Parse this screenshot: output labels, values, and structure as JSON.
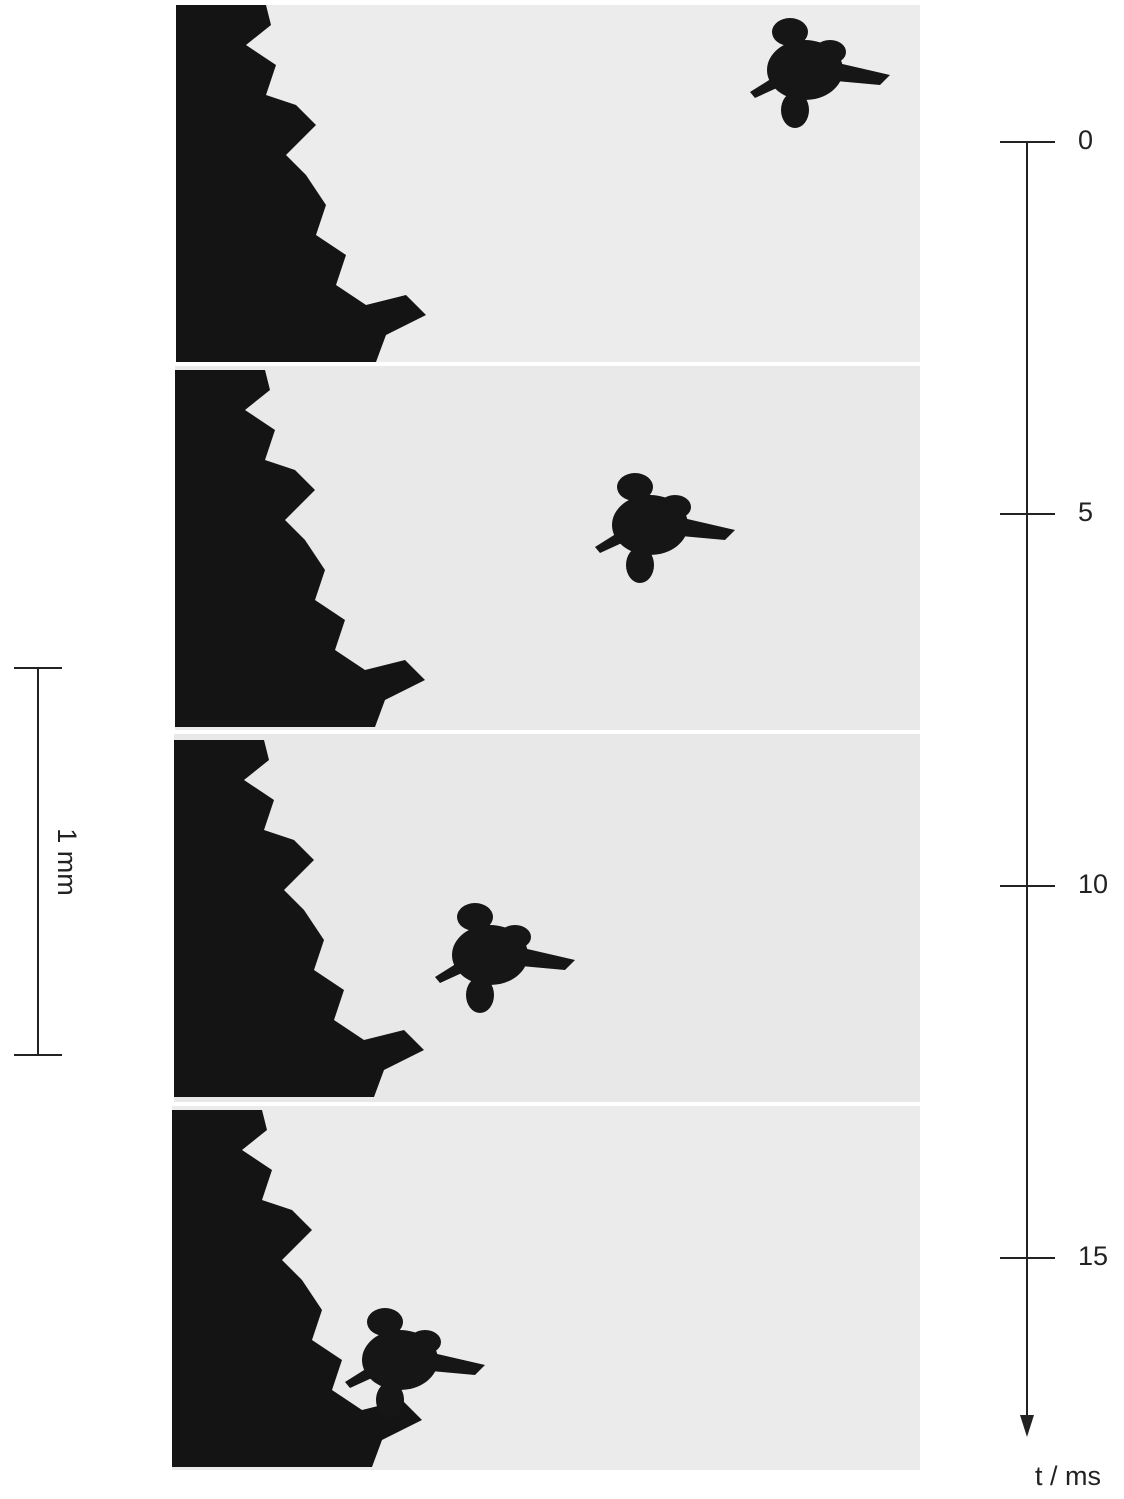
{
  "scale_bar": {
    "label": "1 mm"
  },
  "time_axis": {
    "label": "t / ms",
    "ticks": [
      0,
      5,
      10,
      15
    ]
  }
}
